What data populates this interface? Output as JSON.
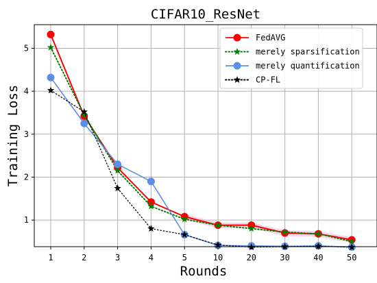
{
  "chart_data": {
    "type": "line",
    "title": "CIFAR10_ResNet",
    "xlabel": "Rounds",
    "ylabel": "Training Loss",
    "categories": [
      "1",
      "2",
      "3",
      "4",
      "5",
      "10",
      "20",
      "30",
      "40",
      "50"
    ],
    "ylim": [
      0.38,
      5.55
    ],
    "yticks": [
      1,
      2,
      3,
      4,
      5
    ],
    "grid": true,
    "legend_position": "top-right",
    "series": [
      {
        "name": "FedAVG",
        "values": [
          5.32,
          3.42,
          2.22,
          1.42,
          1.08,
          0.88,
          0.88,
          0.7,
          0.68,
          0.54
        ],
        "color": "#ff0000",
        "line_style": "solid",
        "marker": "circle"
      },
      {
        "name": "merely sparsification",
        "values": [
          5.02,
          3.45,
          2.15,
          1.32,
          1.02,
          0.88,
          0.8,
          0.72,
          0.68,
          0.5
        ],
        "color": "#008000",
        "line_style": "dotted",
        "marker": "star"
      },
      {
        "name": "merely quantification",
        "values": [
          4.32,
          3.25,
          2.3,
          1.9,
          0.66,
          0.41,
          0.4,
          0.39,
          0.4,
          0.37
        ],
        "color": "#5b8fe6",
        "line_style": "solid",
        "marker": "circle"
      },
      {
        "name": "CP-FL",
        "values": [
          4.02,
          3.52,
          1.74,
          0.8,
          0.66,
          0.42,
          0.37,
          0.38,
          0.39,
          0.37
        ],
        "color": "#000000",
        "line_style": "dotted",
        "marker": "star"
      }
    ]
  }
}
